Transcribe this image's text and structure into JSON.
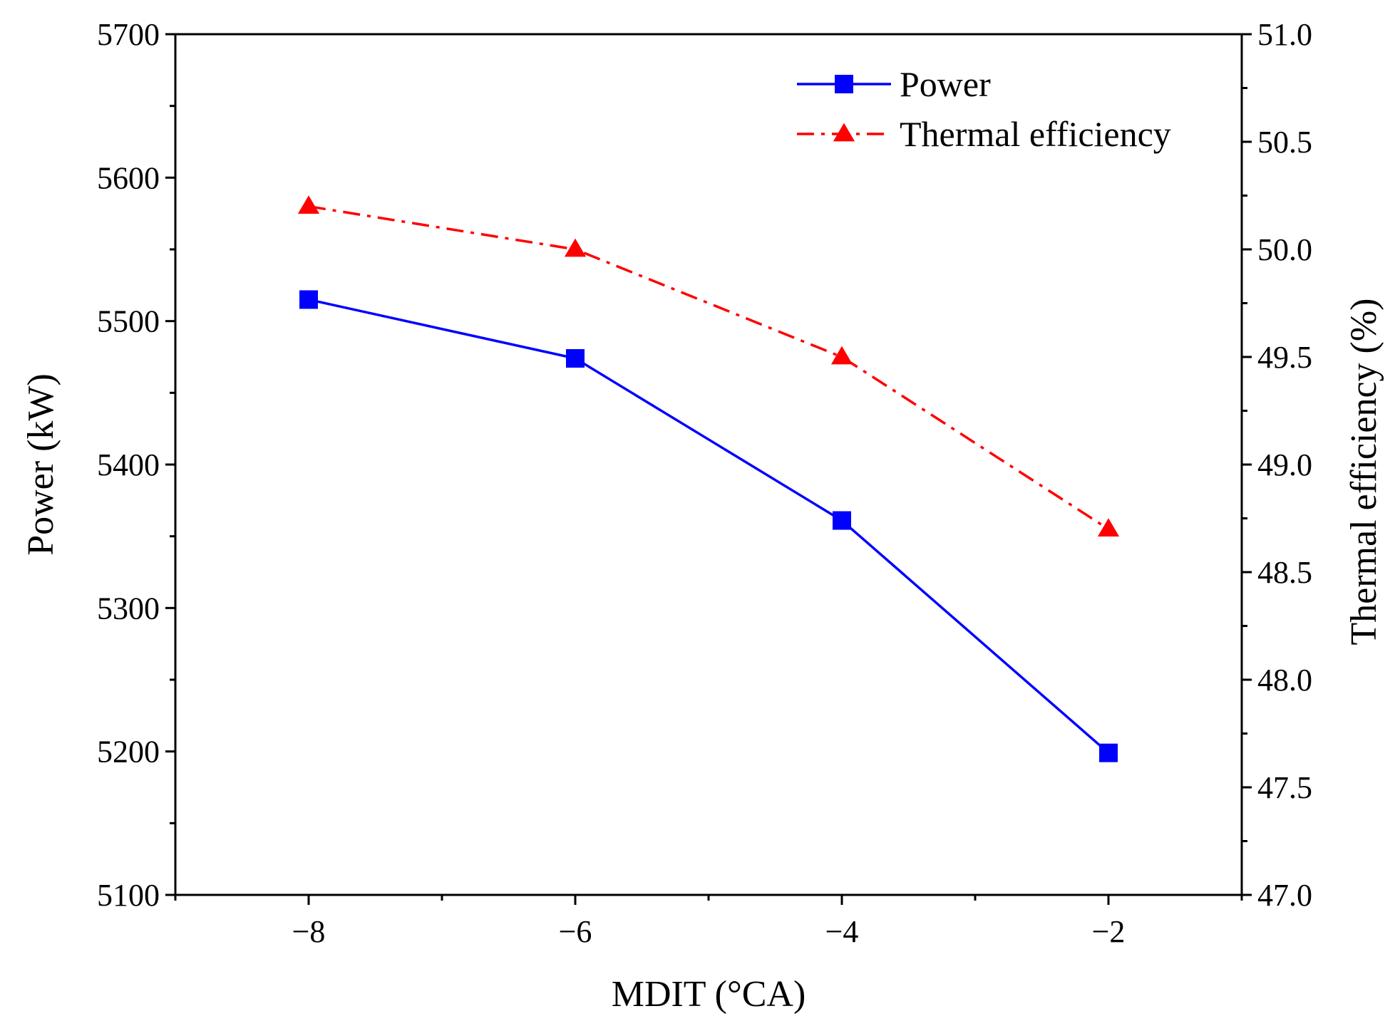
{
  "chart_data": {
    "type": "line",
    "x": [
      -8,
      -6,
      -4,
      -2
    ],
    "xlabel": "MDIT (°CA)",
    "xlim": [
      -9,
      -1
    ],
    "x_ticks": [
      -8,
      -6,
      -4,
      -2
    ],
    "x_tick_labels": [
      "−8",
      "−6",
      "−4",
      "−2"
    ],
    "y_left": {
      "label": "Power (kW)",
      "lim": [
        5100,
        5700
      ],
      "ticks": [
        5100,
        5200,
        5300,
        5400,
        5500,
        5600,
        5700
      ],
      "tick_labels": [
        "5100",
        "5200",
        "5300",
        "5400",
        "5500",
        "5600",
        "5700"
      ]
    },
    "y_right": {
      "label": "Thermal efficiency (%)",
      "lim": [
        47.0,
        51.0
      ],
      "ticks": [
        47.0,
        47.5,
        48.0,
        48.5,
        49.0,
        49.5,
        50.0,
        50.5,
        51.0
      ],
      "tick_labels": [
        "47.0",
        "47.5",
        "48.0",
        "48.5",
        "49.0",
        "49.5",
        "50.0",
        "50.5",
        "51.0"
      ]
    },
    "series": [
      {
        "name": "Power",
        "axis": "left",
        "values": [
          5515,
          5474,
          5361,
          5199
        ],
        "color": "#0000ff",
        "marker": "square",
        "line_style": "solid"
      },
      {
        "name": "Thermal efficiency",
        "axis": "right",
        "values": [
          50.2,
          50.0,
          49.5,
          48.7
        ],
        "color": "#ff0000",
        "marker": "triangle",
        "line_style": "dash-dot"
      }
    ],
    "legend_position": "top-right",
    "grid": false
  }
}
